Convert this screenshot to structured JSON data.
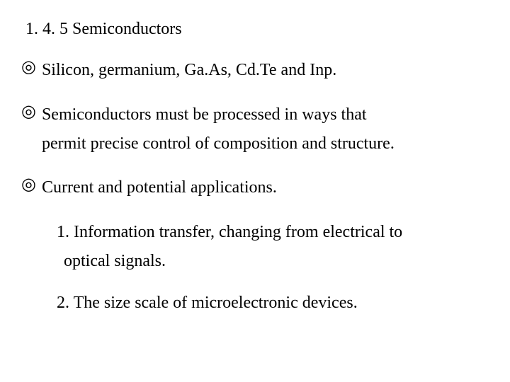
{
  "heading": "1. 4. 5 Semiconductors",
  "bullet_marker": "◎",
  "bullets": {
    "b1": "Silicon, germanium, Ga.As, Cd.Te and Inp.",
    "b2_line1": "Semiconductors must be processed in ways that",
    "b2_line2": "permit precise control of composition and structure.",
    "b3": "Current and potential applications."
  },
  "subs": {
    "s1_line1": "1. Information transfer, changing from electrical to",
    "s1_line2": "optical signals.",
    "s2": "2. The size scale of microelectronic devices."
  },
  "colors": {
    "background": "#ffffff",
    "text": "#000000"
  },
  "typography": {
    "font_family": "Times New Roman",
    "base_fontsize_pt": 18
  }
}
